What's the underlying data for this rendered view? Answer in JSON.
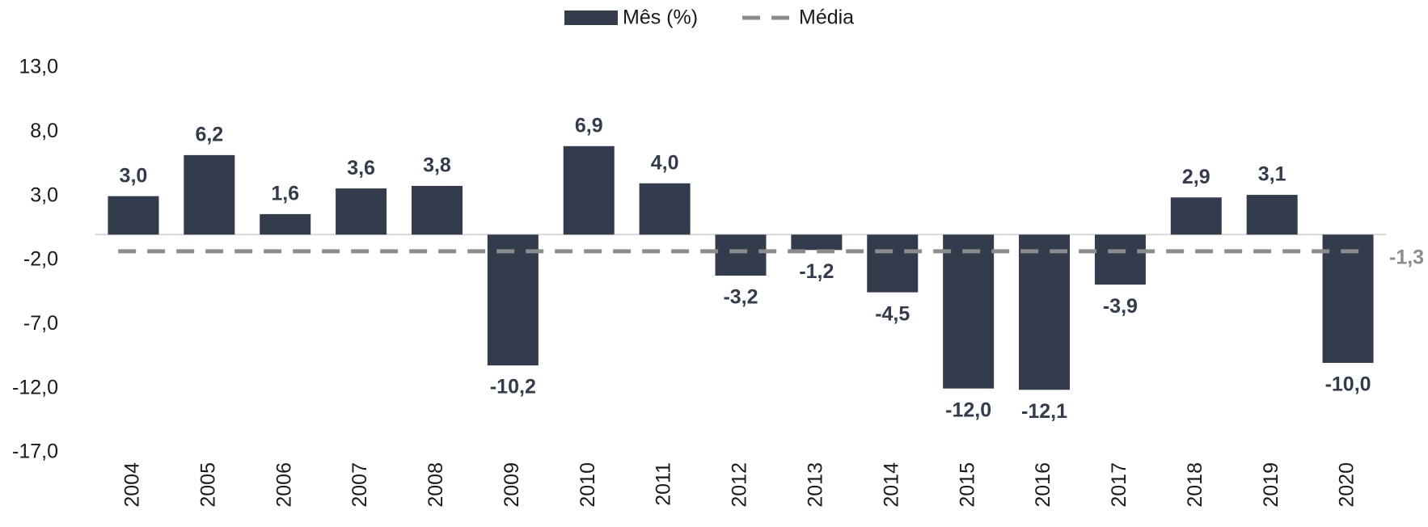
{
  "chart_data": {
    "type": "bar",
    "categories": [
      "2004",
      "2005",
      "2006",
      "2007",
      "2008",
      "2009",
      "2010",
      "2011",
      "2012",
      "2013",
      "2014",
      "2015",
      "2016",
      "2017",
      "2018",
      "2019",
      "2020"
    ],
    "series": [
      {
        "name": "Mês (%)",
        "color": "#323c4d",
        "values": [
          3.0,
          6.2,
          1.6,
          3.6,
          3.8,
          -10.2,
          6.9,
          4.0,
          -3.2,
          -1.2,
          -4.5,
          -12.0,
          -12.1,
          -3.9,
          2.9,
          3.1,
          -10.0
        ],
        "value_labels": [
          "3,0",
          "6,2",
          "1,6",
          "3,6",
          "3,8",
          "-10,2",
          "6,9",
          "4,0",
          "-3,2",
          "-1,2",
          "-4,5",
          "-12,0",
          "-12,1",
          "-3,9",
          "2,9",
          "3,1",
          "-10,0"
        ]
      }
    ],
    "mean": {
      "name": "Média",
      "value": -1.3,
      "label": "-1,3",
      "color": "#8c8c8c"
    },
    "ylim": [
      -17,
      13
    ],
    "yticks": [
      {
        "value": -17,
        "label": "-17,0"
      },
      {
        "value": -12,
        "label": "-12,0"
      },
      {
        "value": -7,
        "label": "-7,0"
      },
      {
        "value": -2,
        "label": "-2,0"
      },
      {
        "value": 3,
        "label": "3,0"
      },
      {
        "value": 8,
        "label": "8,0"
      },
      {
        "value": 13,
        "label": "13,0"
      }
    ],
    "grid": false
  }
}
